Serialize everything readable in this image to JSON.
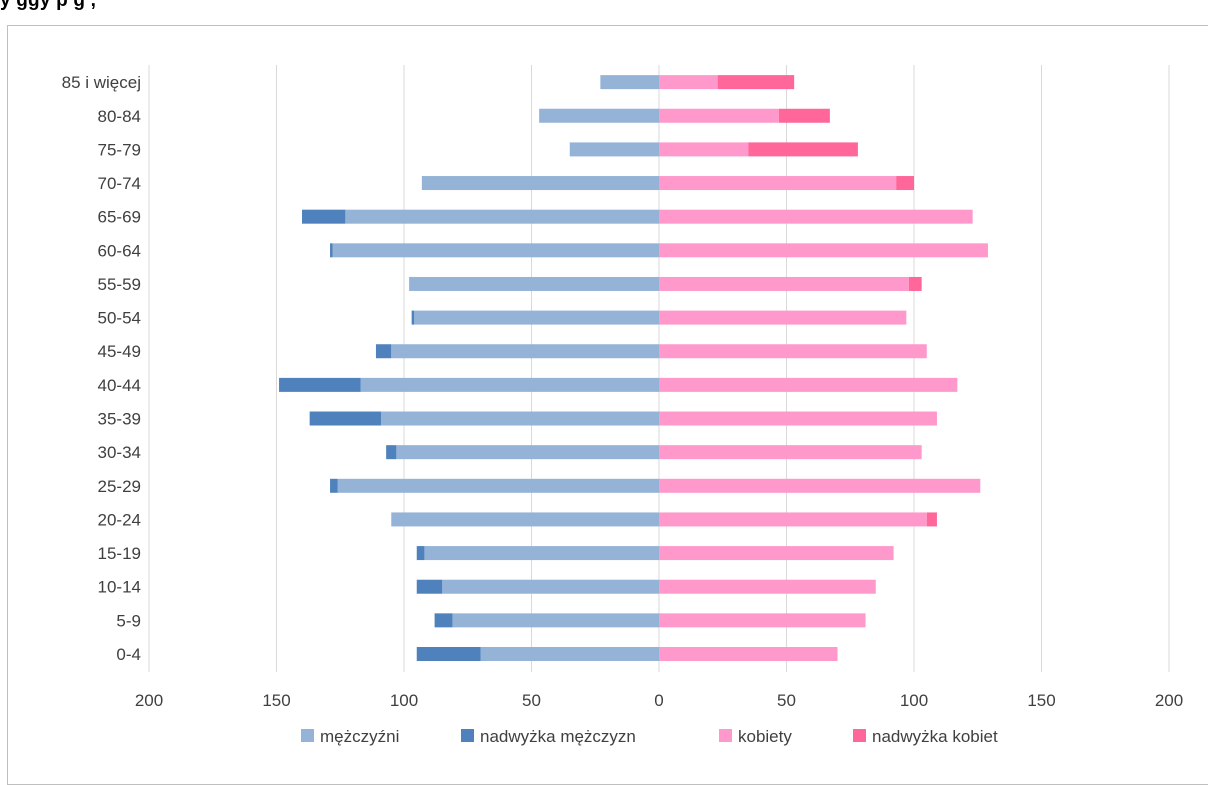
{
  "title_fragment": "y           ggy            p     g               ,",
  "chart_data": {
    "type": "bar",
    "orientation": "horizontal-population-pyramid",
    "stacked": true,
    "categories": [
      "0-4",
      "5-9",
      "10-14",
      "15-19",
      "20-24",
      "25-29",
      "30-34",
      "35-39",
      "40-44",
      "45-49",
      "50-54",
      "55-59",
      "60-64",
      "65-69",
      "70-74",
      "75-79",
      "80-84",
      "85 i więcej"
    ],
    "series": [
      {
        "name": "mężczyźni",
        "side": "left",
        "color": "#95b3d7",
        "values": [
          70,
          81,
          85,
          92,
          105,
          126,
          103,
          109,
          117,
          105,
          96,
          98,
          128,
          123,
          93,
          35,
          47,
          23
        ]
      },
      {
        "name": "nadwyżka mężczyzn",
        "side": "left",
        "color": "#4f81bd",
        "values": [
          25,
          7,
          10,
          3,
          0,
          3,
          4,
          28,
          32,
          6,
          1,
          0,
          1,
          17,
          0,
          0,
          0,
          0
        ]
      },
      {
        "name": "kobiety",
        "side": "right",
        "color": "#ff99cc",
        "values": [
          70,
          81,
          85,
          92,
          105,
          126,
          103,
          109,
          117,
          105,
          97,
          98,
          129,
          123,
          93,
          35,
          47,
          23
        ]
      },
      {
        "name": "nadwyżka kobiet",
        "side": "right",
        "color": "#ff6699",
        "values": [
          0,
          0,
          0,
          0,
          4,
          0,
          0,
          0,
          0,
          0,
          0,
          5,
          0,
          0,
          7,
          43,
          20,
          30
        ]
      }
    ],
    "x_ticks": [
      "200",
      "150",
      "100",
      "50",
      "0",
      "50",
      "100",
      "150",
      "200"
    ],
    "xlim": [
      -200,
      200
    ],
    "grid": "vertical",
    "legend_position": "bottom"
  }
}
